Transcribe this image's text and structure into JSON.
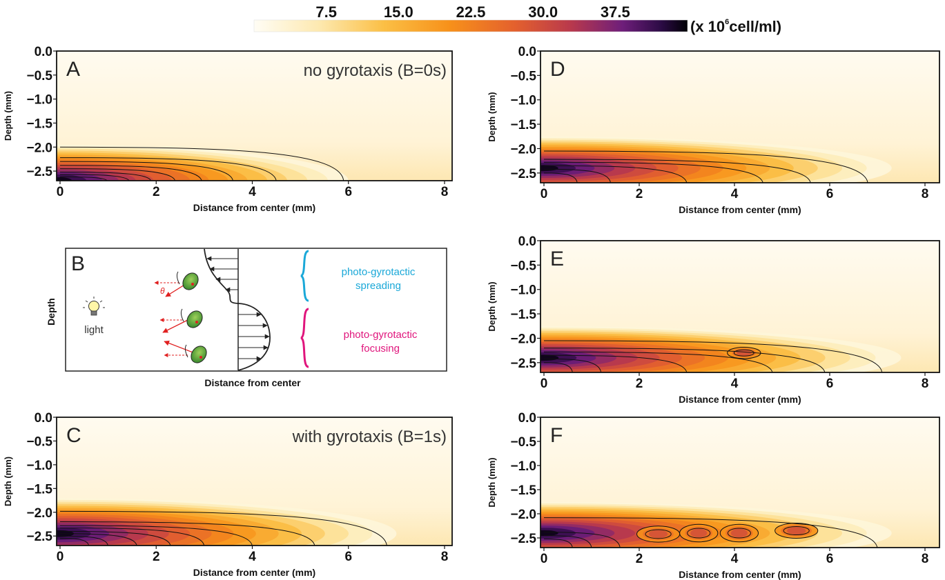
{
  "colorbar": {
    "ticks": [
      "7.5",
      "15.0",
      "22.5",
      "30.0",
      "37.5"
    ],
    "tick_values": [
      7.5,
      15.0,
      22.5,
      30.0,
      37.5
    ],
    "range": [
      0,
      45
    ],
    "unit_prefix": "(x 10",
    "unit_exp": "6",
    "unit_suffix": "cell/ml)"
  },
  "colormap": "inferno-reversed (cream to orange to purple to black)",
  "chart_data": [
    {
      "type": "heatmap",
      "panel": "A",
      "annotation": "no gyrotaxis (B=0s)",
      "xlabel": "Distance from center (mm)",
      "ylabel": "Depth (mm)",
      "xlim": [
        0,
        8
      ],
      "ylim": [
        -2.7,
        0.0
      ],
      "xticks": [
        "0",
        "2",
        "4",
        "6",
        "8"
      ],
      "yticks": [
        "0.0",
        "−0.5",
        "−1.0",
        "−1.5",
        "−2.0",
        "−2.5"
      ],
      "ytick_values": [
        0.0,
        -0.5,
        -1.0,
        -1.5,
        -2.0,
        -2.5
      ],
      "layer": {
        "depth": -2.7,
        "reach_mm": 6.0,
        "top_depth": -1.95,
        "peak": 45
      },
      "contours": [
        {
          "depth": -2.0,
          "reach_mm": 5.9
        },
        {
          "depth": -2.22,
          "reach_mm": 4.5
        },
        {
          "depth": -2.3,
          "reach_mm": 3.6
        },
        {
          "depth": -2.38,
          "reach_mm": 2.95
        },
        {
          "depth": -2.45,
          "reach_mm": 2.4
        },
        {
          "depth": -2.52,
          "reach_mm": 1.9
        },
        {
          "depth": -2.57,
          "reach_mm": 1.45
        },
        {
          "depth": -2.62,
          "reach_mm": 1.0
        }
      ]
    },
    {
      "type": "heatmap",
      "panel": "C",
      "annotation": "with gyrotaxis (B=1s)",
      "xlabel": "Distance from center (mm)",
      "ylabel": "Depth (mm)",
      "xlim": [
        0,
        8
      ],
      "ylim": [
        -2.7,
        0.0
      ],
      "xticks": [
        "0",
        "2",
        "4",
        "6",
        "8"
      ],
      "yticks": [
        "0.0",
        "−0.5",
        "−1.0",
        "−1.5",
        "−2.0",
        "−2.5"
      ],
      "ytick_values": [
        0.0,
        -0.5,
        -1.0,
        -1.5,
        -2.0,
        -2.5
      ],
      "layer": {
        "depth": -2.45,
        "reach_mm": 7.0,
        "top_depth": -1.95,
        "peak": 45
      },
      "contours": [
        {
          "depth": -1.98,
          "reach_mm": 6.8
        },
        {
          "depth": -2.2,
          "reach_mm": 5.3
        },
        {
          "depth": -2.28,
          "reach_mm": 4.0
        },
        {
          "depth": -2.33,
          "reach_mm": 3.0
        },
        {
          "depth": -2.4,
          "reach_mm": 2.3
        },
        {
          "depth": -2.45,
          "reach_mm": 1.6
        },
        {
          "depth": -2.5,
          "reach_mm": 1.0
        },
        {
          "depth": -2.55,
          "reach_mm": 0.6
        }
      ]
    },
    {
      "type": "heatmap",
      "panel": "D",
      "annotation": "",
      "xlabel": "Distance from center (mm)",
      "ylabel": "Depth (mm)",
      "xlim": [
        0,
        8
      ],
      "ylim": [
        -2.7,
        0.0
      ],
      "xticks": [
        "0",
        "2",
        "4",
        "6",
        "8"
      ],
      "yticks": [
        "0.0",
        "−0.5",
        "−1.0",
        "−1.5",
        "−2.0",
        "−2.5"
      ],
      "ytick_values": [
        0.0,
        -0.5,
        -1.0,
        -1.5,
        -2.0,
        -2.5
      ],
      "layer": {
        "depth": -2.4,
        "reach_mm": 7.3,
        "top_depth": -2.05,
        "peak": 45
      },
      "contours": [
        {
          "depth": -2.05,
          "reach_mm": 6.8
        },
        {
          "depth": -2.22,
          "reach_mm": 5.6
        },
        {
          "depth": -2.28,
          "reach_mm": 4.6
        },
        {
          "depth": -2.35,
          "reach_mm": 3.0
        },
        {
          "depth": -2.42,
          "reach_mm": 1.4
        },
        {
          "depth": -2.5,
          "reach_mm": 0.7
        }
      ]
    },
    {
      "type": "heatmap",
      "panel": "E",
      "annotation": "",
      "xlabel": "Distance from center (mm)",
      "ylabel": "Depth (mm)",
      "xlim": [
        0,
        8
      ],
      "ylim": [
        -2.7,
        0.0
      ],
      "xticks": [
        "0",
        "2",
        "4",
        "6",
        "8"
      ],
      "yticks": [
        "0.0",
        "−0.5",
        "−1.0",
        "−1.5",
        "−2.0",
        "−2.5"
      ],
      "ytick_values": [
        0.0,
        -0.5,
        -1.0,
        -1.5,
        -2.0,
        -2.5
      ],
      "layer": {
        "depth": -2.4,
        "reach_mm": 7.5,
        "top_depth": -2.05,
        "peak": 45
      },
      "contours": [
        {
          "depth": -2.05,
          "reach_mm": 7.1
        },
        {
          "depth": -2.2,
          "reach_mm": 5.9
        },
        {
          "depth": -2.28,
          "reach_mm": 4.8
        },
        {
          "depth": -2.35,
          "reach_mm": 3.0
        },
        {
          "depth": -2.42,
          "reach_mm": 1.2
        },
        {
          "depth": -2.5,
          "reach_mm": 0.6
        }
      ],
      "blobs": [
        {
          "x": 4.2,
          "depth": -2.3,
          "w_mm": 0.7,
          "h_mm": 0.12
        }
      ]
    },
    {
      "type": "heatmap",
      "panel": "F",
      "annotation": "",
      "xlabel": "Distance from center (mm)",
      "ylabel": "Depth (mm)",
      "xlim": [
        0,
        8
      ],
      "ylim": [
        -2.7,
        0.0
      ],
      "xticks": [
        "0",
        "2",
        "4",
        "6",
        "8"
      ],
      "yticks": [
        "0.0",
        "−0.5",
        "−1.0",
        "−1.5",
        "−2.0",
        "−2.5"
      ],
      "ytick_values": [
        0.0,
        -0.5,
        -1.0,
        -1.5,
        -2.0,
        -2.5
      ],
      "layer": {
        "depth": -2.4,
        "reach_mm": 7.3,
        "top_depth": -2.05,
        "peak": 45
      },
      "contours": [
        {
          "depth": -2.08,
          "reach_mm": 7.0
        },
        {
          "depth": -2.38,
          "reach_mm": 1.6
        },
        {
          "depth": -2.45,
          "reach_mm": 1.0
        },
        {
          "depth": -2.52,
          "reach_mm": 0.6
        }
      ],
      "blobs": [
        {
          "x": 2.4,
          "depth": -2.42,
          "w_mm": 0.9,
          "h_mm": 0.22
        },
        {
          "x": 3.25,
          "depth": -2.4,
          "w_mm": 0.8,
          "h_mm": 0.25
        },
        {
          "x": 4.1,
          "depth": -2.4,
          "w_mm": 0.8,
          "h_mm": 0.25
        },
        {
          "x": 5.3,
          "depth": -2.35,
          "w_mm": 0.9,
          "h_mm": 0.2
        }
      ]
    }
  ],
  "schematic": {
    "panel": "B",
    "ylabel": "Depth",
    "xlabel": "Distance from center",
    "light_label": "light",
    "theta": "θ",
    "spreading_line1": "photo-gyrotactic",
    "spreading_line2": "spreading",
    "focusing_line1": "photo-gyrotactic",
    "focusing_line2": "focusing",
    "spreading_color": "#1aa8d8",
    "focusing_color": "#e0157c"
  }
}
